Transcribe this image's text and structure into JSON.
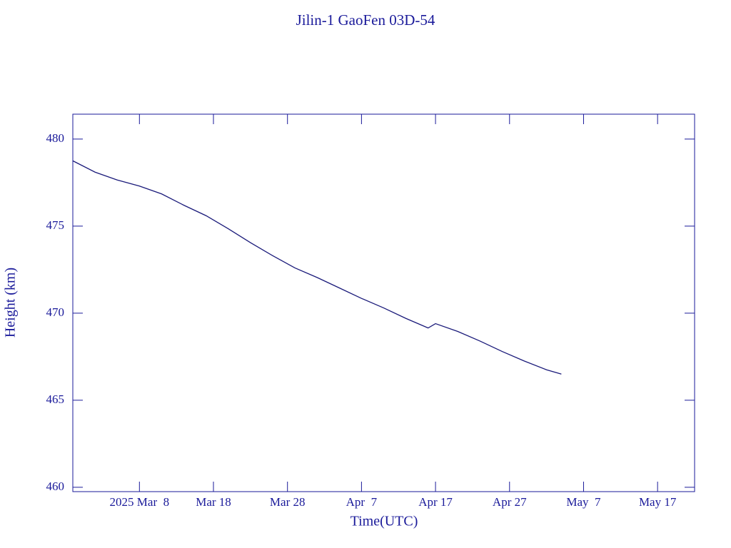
{
  "chart_data": {
    "type": "line",
    "title": "Jilin-1 GaoFen 03D-54",
    "x_label": "Time(UTC)",
    "y_label": "Height (km)",
    "color": "#1a1a7a",
    "x": [
      "2025-02-27",
      "2025-03-02",
      "2025-03-05",
      "2025-03-08",
      "2025-03-11",
      "2025-03-14",
      "2025-03-17",
      "2025-03-20",
      "2025-03-23",
      "2025-03-26",
      "2025-03-29",
      "2025-04-01",
      "2025-04-04",
      "2025-04-07",
      "2025-04-10",
      "2025-04-13",
      "2025-04-16",
      "2025-04-17",
      "2025-04-20",
      "2025-04-23",
      "2025-04-26",
      "2025-04-29",
      "2025-05-02",
      "2025-05-04"
    ],
    "values": [
      478.75,
      478.1,
      477.65,
      477.3,
      476.85,
      476.2,
      475.6,
      474.85,
      474.05,
      473.3,
      472.6,
      472.05,
      471.45,
      470.85,
      470.3,
      469.7,
      469.15,
      469.4,
      468.95,
      468.4,
      467.8,
      467.25,
      466.75,
      466.5
    ],
    "xlim": [
      "2025-02-27",
      "2025-05-22"
    ],
    "xticks": [
      {
        "value": "2025-03-08",
        "label": "2025 Mar  8"
      },
      {
        "value": "2025-03-18",
        "label": "Mar 18"
      },
      {
        "value": "2025-03-28",
        "label": "Mar 28"
      },
      {
        "value": "2025-04-07",
        "label": "Apr  7"
      },
      {
        "value": "2025-04-17",
        "label": "Apr 17"
      },
      {
        "value": "2025-04-27",
        "label": "Apr 27"
      },
      {
        "value": "2025-05-07",
        "label": "May  7"
      },
      {
        "value": "2025-05-17",
        "label": "May 17"
      }
    ],
    "ylim": [
      459.75,
      481.43
    ],
    "yticks": [
      460,
      465,
      470,
      475,
      480
    ]
  }
}
